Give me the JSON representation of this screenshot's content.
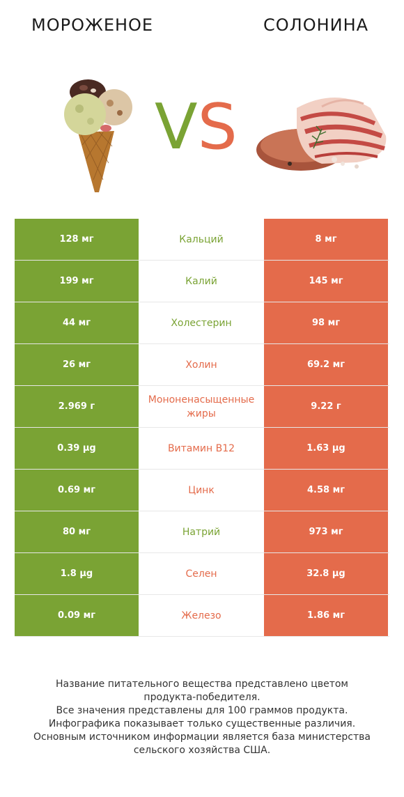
{
  "header": {
    "left_title": "МОРОЖЕНОЕ",
    "right_title": "СОЛОНИНА",
    "vs_v": "V",
    "vs_s": "S",
    "left_image_icon": "ice-cream-cone-icon",
    "right_image_icon": "corned-beef-icon"
  },
  "colors": {
    "left_accent": "#7aa334",
    "right_accent": "#e46b4b"
  },
  "rows": [
    {
      "left": "128 мг",
      "name": "Кальций",
      "right": "8 мг",
      "winner": "left"
    },
    {
      "left": "199 мг",
      "name": "Калий",
      "right": "145 мг",
      "winner": "left"
    },
    {
      "left": "44 мг",
      "name": "Холестерин",
      "right": "98 мг",
      "winner": "left"
    },
    {
      "left": "26 мг",
      "name": "Холин",
      "right": "69.2 мг",
      "winner": "right"
    },
    {
      "left": "2.969 г",
      "name": "Мононенасыщенные жиры",
      "name_line1": "Мононенасыщенные",
      "name_line2": "жиры",
      "right": "9.22 г",
      "winner": "right"
    },
    {
      "left": "0.39 µg",
      "name": "Витамин B12",
      "right": "1.63 µg",
      "winner": "right"
    },
    {
      "left": "0.69 мг",
      "name": "Цинк",
      "right": "4.58 мг",
      "winner": "right"
    },
    {
      "left": "80 мг",
      "name": "Натрий",
      "right": "973 мг",
      "winner": "left"
    },
    {
      "left": "1.8 µg",
      "name": "Селен",
      "right": "32.8 µg",
      "winner": "right"
    },
    {
      "left": "0.09 мг",
      "name": "Железо",
      "right": "1.86 мг",
      "winner": "right"
    }
  ],
  "footer": {
    "line1": "Название питательного вещества представлено цветом",
    "line2": "продукта-победителя.",
    "line3": "Все значения представлены для 100 граммов продукта.",
    "line4": "Инфографика показывает только существенные различия.",
    "line5": "Основным источником информации является база министерства",
    "line6": "сельского хозяйства США."
  }
}
